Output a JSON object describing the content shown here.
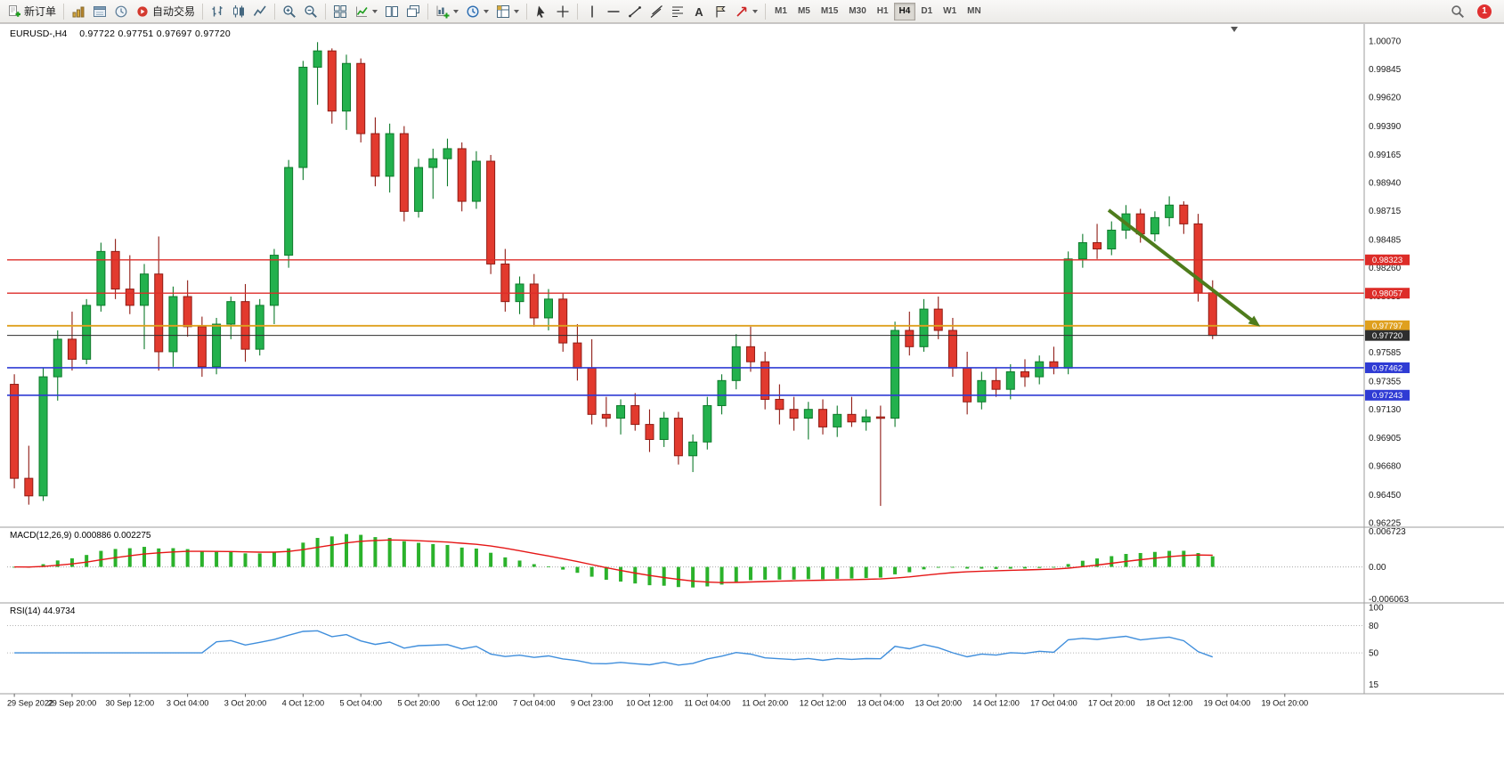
{
  "toolbar": {
    "groups": [
      [
        {
          "name": "new-order",
          "icon": "doc-plus",
          "label": "新订单"
        }
      ],
      [
        {
          "name": "profiles",
          "icon": "profiles"
        },
        {
          "name": "market-watch",
          "icon": "market-watch"
        },
        {
          "name": "data-window",
          "icon": "data-window"
        },
        {
          "name": "auto-trading",
          "icon": "autotrade",
          "label": "自动交易"
        }
      ],
      [
        {
          "name": "bar-chart-mode",
          "icon": "ohlc"
        },
        {
          "name": "candle-chart-mode",
          "icon": "candles"
        },
        {
          "name": "line-chart-mode",
          "icon": "zigzag"
        }
      ],
      [
        {
          "name": "zoom-in",
          "icon": "magnifier-plus"
        },
        {
          "name": "zoom-out",
          "icon": "magnifier-minus"
        }
      ],
      [
        {
          "name": "tile-windows",
          "icon": "tile"
        },
        {
          "name": "indicators",
          "icon": "indicator",
          "caret": true
        },
        {
          "name": "auto-arrange",
          "icon": "arrange"
        },
        {
          "name": "cascade-windows",
          "icon": "cascade"
        }
      ],
      [
        {
          "name": "new-chart",
          "icon": "chart-plus",
          "caret": true
        },
        {
          "name": "periods",
          "icon": "clock",
          "caret": true
        },
        {
          "name": "templates",
          "icon": "template",
          "caret": true
        }
      ],
      [
        {
          "name": "cursor",
          "icon": "cursor"
        },
        {
          "name": "crosshair",
          "icon": "crosshair"
        }
      ],
      [
        {
          "name": "draw-vertical-line",
          "icon": "vline"
        },
        {
          "name": "draw-horizontal-line",
          "icon": "hline"
        },
        {
          "name": "draw-trendline",
          "icon": "trend"
        },
        {
          "name": "draw-channel",
          "icon": "channel"
        },
        {
          "name": "draw-fibonacci",
          "icon": "fibo"
        },
        {
          "name": "draw-text",
          "icon": "text-a"
        },
        {
          "name": "draw-label",
          "icon": "flag"
        },
        {
          "name": "draw-arrows",
          "icon": "shapes",
          "caret": true
        }
      ]
    ],
    "timeframes": [
      "M1",
      "M5",
      "M15",
      "M30",
      "H1",
      "H4",
      "D1",
      "W1",
      "MN"
    ],
    "active_timeframe": "H4",
    "notification_count": "1"
  },
  "chart": {
    "title": "EURUSD-,H4",
    "ohlc_text": "0.97722 0.97751 0.97697 0.97720",
    "price_ticks": [
      "1.00070",
      "0.99845",
      "0.99620",
      "0.99390",
      "0.99165",
      "0.98940",
      "0.98715",
      "0.98485",
      "0.98260",
      "0.98035",
      "0.97810",
      "0.97585",
      "0.97355",
      "0.97130",
      "0.96905",
      "0.96680",
      "0.96450",
      "0.96225"
    ],
    "levels": [
      {
        "label": "0.98323",
        "value": 0.98323,
        "color": "#DD2C28",
        "width": 1.4
      },
      {
        "label": "0.98057",
        "value": 0.98057,
        "color": "#DD2C28",
        "width": 1.4
      },
      {
        "label": "0.97797",
        "value": 0.97797,
        "color": "#DFA01E",
        "width": 1.8
      },
      {
        "label": "0.97720",
        "value": 0.9772,
        "color": "#2e2e2e",
        "width": 1.0,
        "type": "bid"
      },
      {
        "label": "0.97462",
        "value": 0.97462,
        "color": "#2F3BD4",
        "width": 1.6
      },
      {
        "label": "0.97243",
        "value": 0.97243,
        "color": "#2F3BD4",
        "width": 1.6
      }
    ],
    "slots": 94,
    "candles": [
      [
        0.9733,
        0.9741,
        0.965,
        0.9658
      ],
      [
        0.9658,
        0.9684,
        0.9637,
        0.9644
      ],
      [
        0.9644,
        0.9746,
        0.964,
        0.9739
      ],
      [
        0.9739,
        0.9776,
        0.972,
        0.9769
      ],
      [
        0.9769,
        0.9791,
        0.9744,
        0.9753
      ],
      [
        0.9753,
        0.9801,
        0.9749,
        0.9796
      ],
      [
        0.9796,
        0.9846,
        0.9791,
        0.9839
      ],
      [
        0.9839,
        0.9849,
        0.9801,
        0.9809
      ],
      [
        0.9809,
        0.9836,
        0.9789,
        0.9796
      ],
      [
        0.9796,
        0.9829,
        0.9761,
        0.9821
      ],
      [
        0.9821,
        0.9851,
        0.9744,
        0.9759
      ],
      [
        0.9759,
        0.9811,
        0.9747,
        0.9803
      ],
      [
        0.9803,
        0.9816,
        0.9771,
        0.9779
      ],
      [
        0.9779,
        0.9787,
        0.9739,
        0.9747
      ],
      [
        0.9747,
        0.9786,
        0.9741,
        0.9781
      ],
      [
        0.9781,
        0.9803,
        0.9769,
        0.9799
      ],
      [
        0.9799,
        0.9813,
        0.9751,
        0.9761
      ],
      [
        0.9761,
        0.9801,
        0.9756,
        0.9796
      ],
      [
        0.9796,
        0.9841,
        0.9781,
        0.9836
      ],
      [
        0.9836,
        0.9912,
        0.9826,
        0.9906
      ],
      [
        0.9906,
        0.9991,
        0.9896,
        0.9986
      ],
      [
        0.9986,
        1.0006,
        0.9956,
        0.9999
      ],
      [
        0.9999,
        1.0001,
        0.9941,
        0.9951
      ],
      [
        0.9951,
        0.9996,
        0.9936,
        0.9989
      ],
      [
        0.9989,
        0.9993,
        0.9926,
        0.9933
      ],
      [
        0.9933,
        0.9946,
        0.9891,
        0.9899
      ],
      [
        0.9899,
        0.9941,
        0.9886,
        0.9933
      ],
      [
        0.9933,
        0.9939,
        0.9863,
        0.9871
      ],
      [
        0.9871,
        0.9913,
        0.9866,
        0.9906
      ],
      [
        0.9906,
        0.9921,
        0.9881,
        0.9913
      ],
      [
        0.9913,
        0.9929,
        0.9891,
        0.9921
      ],
      [
        0.9921,
        0.9926,
        0.9871,
        0.9879
      ],
      [
        0.9879,
        0.9919,
        0.9873,
        0.9911
      ],
      [
        0.9911,
        0.9916,
        0.9821,
        0.9829
      ],
      [
        0.9829,
        0.9841,
        0.9791,
        0.9799
      ],
      [
        0.9799,
        0.9819,
        0.9789,
        0.9813
      ],
      [
        0.9813,
        0.9821,
        0.9779,
        0.9786
      ],
      [
        0.9786,
        0.9809,
        0.9776,
        0.9801
      ],
      [
        0.9801,
        0.9806,
        0.9759,
        0.9766
      ],
      [
        0.9766,
        0.9781,
        0.9736,
        0.9746
      ],
      [
        0.9746,
        0.9769,
        0.9701,
        0.9709
      ],
      [
        0.9709,
        0.9723,
        0.9699,
        0.9706
      ],
      [
        0.9706,
        0.9721,
        0.9693,
        0.9716
      ],
      [
        0.9716,
        0.9726,
        0.9696,
        0.9701
      ],
      [
        0.9701,
        0.9713,
        0.9679,
        0.9689
      ],
      [
        0.9689,
        0.9711,
        0.9683,
        0.9706
      ],
      [
        0.9706,
        0.9711,
        0.9669,
        0.9676
      ],
      [
        0.9676,
        0.9693,
        0.9663,
        0.9687
      ],
      [
        0.9687,
        0.9723,
        0.9681,
        0.9716
      ],
      [
        0.9716,
        0.9741,
        0.9709,
        0.9736
      ],
      [
        0.9736,
        0.9773,
        0.9729,
        0.9763
      ],
      [
        0.9763,
        0.9779,
        0.9743,
        0.9751
      ],
      [
        0.9751,
        0.9759,
        0.9713,
        0.9721
      ],
      [
        0.9721,
        0.9733,
        0.9701,
        0.9713
      ],
      [
        0.9713,
        0.9723,
        0.9696,
        0.9706
      ],
      [
        0.9706,
        0.9719,
        0.9689,
        0.9713
      ],
      [
        0.9713,
        0.9721,
        0.9693,
        0.9699
      ],
      [
        0.9699,
        0.9716,
        0.9691,
        0.9709
      ],
      [
        0.9709,
        0.9723,
        0.9699,
        0.9703
      ],
      [
        0.9703,
        0.9713,
        0.9696,
        0.9707
      ],
      [
        0.9707,
        0.9716,
        0.9636,
        0.9706
      ],
      [
        0.9706,
        0.9783,
        0.9699,
        0.9776
      ],
      [
        0.9776,
        0.9791,
        0.9756,
        0.9763
      ],
      [
        0.9763,
        0.9801,
        0.9759,
        0.9793
      ],
      [
        0.9793,
        0.9803,
        0.9769,
        0.9776
      ],
      [
        0.9776,
        0.9786,
        0.9739,
        0.9746
      ],
      [
        0.9746,
        0.9759,
        0.9709,
        0.9719
      ],
      [
        0.9719,
        0.9743,
        0.9713,
        0.9736
      ],
      [
        0.9736,
        0.9746,
        0.9723,
        0.9729
      ],
      [
        0.9729,
        0.9749,
        0.9721,
        0.9743
      ],
      [
        0.9743,
        0.9753,
        0.9731,
        0.9739
      ],
      [
        0.9739,
        0.9756,
        0.9733,
        0.9751
      ],
      [
        0.9751,
        0.9763,
        0.9741,
        0.9746
      ],
      [
        0.9746,
        0.9839,
        0.9741,
        0.9833
      ],
      [
        0.9833,
        0.9853,
        0.9826,
        0.9846
      ],
      [
        0.9846,
        0.9861,
        0.9833,
        0.9841
      ],
      [
        0.9841,
        0.9863,
        0.9836,
        0.9856
      ],
      [
        0.9856,
        0.9876,
        0.9849,
        0.9869
      ],
      [
        0.9869,
        0.9873,
        0.9846,
        0.9853
      ],
      [
        0.9853,
        0.9871,
        0.9847,
        0.9866
      ],
      [
        0.9866,
        0.9883,
        0.9859,
        0.9876
      ],
      [
        0.9876,
        0.9879,
        0.9853,
        0.9861
      ],
      [
        0.9861,
        0.9869,
        0.9799,
        0.9806
      ],
      [
        0.9806,
        0.9816,
        0.9769,
        0.9772
      ]
    ],
    "arrow": {
      "from_slot": 76.3,
      "from_price": 0.9872,
      "to_slot": 86.8,
      "to_price": 0.9779,
      "color": "#4E7C1C",
      "width": 4
    },
    "shift_marker_slot": 85,
    "colors": {
      "up_fill": "#23B14D",
      "up_stroke": "#0E7A2B",
      "down_fill": "#E23A2E",
      "down_stroke": "#8F1B14",
      "axis_text": "#1a1a1a",
      "separator": "#9e9e9e",
      "badge_text": "#ffffff"
    }
  },
  "indicators": {
    "macd": {
      "text": "MACD(12,26,9) 0.000886 0.002275",
      "axis": [
        "0.006723",
        "0.00",
        "-0.006063"
      ],
      "bar_color": "#2BB22B",
      "signal_color": "#E51616"
    },
    "rsi": {
      "text": "RSI(14) 44.9734",
      "axis": [
        "100",
        "80",
        "50",
        "15"
      ],
      "levels": [
        80,
        50
      ],
      "line_color": "#3F8EDC"
    }
  },
  "time_axis": {
    "label_every": 4,
    "labels": [
      "29 Sep 2022",
      "29 Sep 20:00",
      "30 Sep 12:00",
      "3 Oct 04:00",
      "3 Oct 20:00",
      "4 Oct 12:00",
      "5 Oct 04:00",
      "5 Oct 20:00",
      "6 Oct 12:00",
      "7 Oct 04:00",
      "9 Oct 23:00",
      "10 Oct 12:00",
      "11 Oct 04:00",
      "11 Oct 20:00",
      "12 Oct 12:00",
      "13 Oct 04:00",
      "13 Oct 20:00",
      "14 Oct 12:00",
      "17 Oct 04:00",
      "17 Oct 20:00",
      "18 Oct 12:00",
      "19 Oct 04:00",
      "19 Oct 20:00"
    ]
  }
}
